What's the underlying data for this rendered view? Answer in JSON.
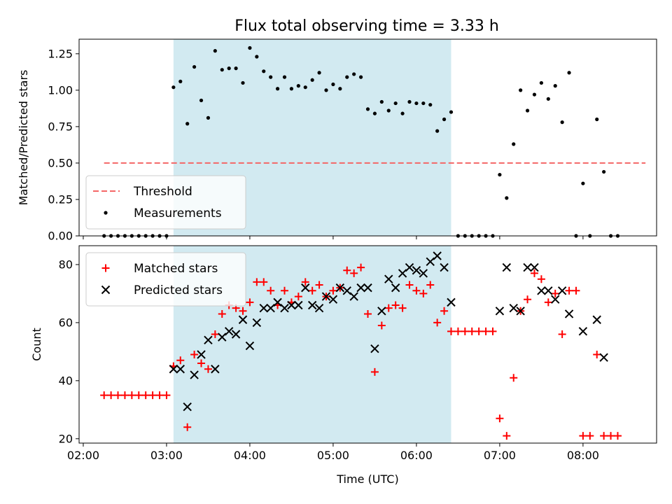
{
  "title": "Flux total observing time = 3.33 h",
  "chart_data": [
    {
      "type": "scatter",
      "ylabel": "Matched/Predicted stars",
      "ylim": [
        0,
        1.35
      ],
      "yticks": [
        0,
        0.25,
        0.5,
        0.75,
        1.0,
        1.25
      ],
      "ytick_labels": [
        "0.00",
        "0.25",
        "0.50",
        "0.75",
        "1.00",
        "1.25"
      ],
      "xlim": [
        "01:57",
        "08:53"
      ],
      "xticks": [
        "02:00",
        "03:00",
        "04:00",
        "05:00",
        "06:00",
        "07:00",
        "08:00"
      ],
      "shaded_interval": [
        "03:05",
        "06:25"
      ],
      "shade_color": "#add8e6",
      "legend_position": "lower left",
      "threshold": {
        "name": "Threshold",
        "x": [
          "02:15",
          "08:45"
        ],
        "y": 0.5,
        "color": "#f46666",
        "style": "dashed"
      },
      "series": [
        {
          "name": "Measurements",
          "color": "#000000",
          "marker": "dot",
          "x": [
            "02:15",
            "02:20",
            "02:25",
            "02:30",
            "02:35",
            "02:40",
            "02:45",
            "02:50",
            "02:55",
            "03:00",
            "03:05",
            "03:10",
            "03:15",
            "03:20",
            "03:25",
            "03:30",
            "03:35",
            "03:40",
            "03:45",
            "03:50",
            "03:55",
            "04:00",
            "04:05",
            "04:10",
            "04:15",
            "04:20",
            "04:25",
            "04:30",
            "04:35",
            "04:40",
            "04:45",
            "04:50",
            "04:55",
            "05:00",
            "05:05",
            "05:10",
            "05:15",
            "05:20",
            "05:25",
            "05:30",
            "05:35",
            "05:40",
            "05:45",
            "05:50",
            "05:55",
            "06:00",
            "06:05",
            "06:10",
            "06:15",
            "06:20",
            "06:25",
            "06:30",
            "06:35",
            "06:40",
            "06:45",
            "06:50",
            "06:55",
            "07:00",
            "07:05",
            "07:10",
            "07:15",
            "07:20",
            "07:25",
            "07:30",
            "07:35",
            "07:40",
            "07:45",
            "07:50",
            "07:55",
            "08:00",
            "08:05",
            "08:10",
            "08:15",
            "08:20",
            "08:25"
          ],
          "y": [
            0,
            0,
            0,
            0,
            0,
            0,
            0,
            0,
            0,
            0,
            1.02,
            1.06,
            0.77,
            1.16,
            0.93,
            0.81,
            1.27,
            1.14,
            1.15,
            1.15,
            1.05,
            1.29,
            1.23,
            1.13,
            1.09,
            1.01,
            1.09,
            1.01,
            1.03,
            1.02,
            1.07,
            1.12,
            1.0,
            1.04,
            1.01,
            1.09,
            1.11,
            1.09,
            0.87,
            0.84,
            0.92,
            0.86,
            0.91,
            0.84,
            0.92,
            0.91,
            0.91,
            0.9,
            0.72,
            0.8,
            0.85,
            0,
            0,
            0,
            0,
            0,
            0,
            0.42,
            0.26,
            0.63,
            1.0,
            0.86,
            0.97,
            1.05,
            0.94,
            1.03,
            0.78,
            1.12,
            0,
            0.36,
            0,
            0.8,
            0.44,
            0,
            0
          ]
        }
      ]
    },
    {
      "type": "scatter",
      "xlabel": "Time (UTC)",
      "ylabel": "Count",
      "ylim": [
        18.5,
        86.5
      ],
      "yticks": [
        20,
        40,
        60,
        80
      ],
      "xlim": [
        "01:57",
        "08:53"
      ],
      "xticks": [
        "02:00",
        "03:00",
        "04:00",
        "05:00",
        "06:00",
        "07:00",
        "08:00"
      ],
      "shaded_interval": [
        "03:05",
        "06:25"
      ],
      "shade_color": "#add8e6",
      "legend_position": "upper left",
      "series": [
        {
          "name": "Matched stars",
          "color": "#ff0000",
          "marker": "plus",
          "x": [
            "02:15",
            "02:20",
            "02:25",
            "02:30",
            "02:35",
            "02:40",
            "02:45",
            "02:50",
            "02:55",
            "03:00",
            "03:05",
            "03:10",
            "03:15",
            "03:20",
            "03:25",
            "03:30",
            "03:35",
            "03:40",
            "03:45",
            "03:50",
            "03:55",
            "04:00",
            "04:05",
            "04:10",
            "04:15",
            "04:20",
            "04:25",
            "04:30",
            "04:35",
            "04:40",
            "04:45",
            "04:50",
            "04:55",
            "05:00",
            "05:05",
            "05:10",
            "05:15",
            "05:20",
            "05:25",
            "05:30",
            "05:35",
            "05:40",
            "05:45",
            "05:50",
            "05:55",
            "06:00",
            "06:05",
            "06:10",
            "06:15",
            "06:20",
            "06:25",
            "06:30",
            "06:35",
            "06:40",
            "06:45",
            "06:50",
            "06:55",
            "07:00",
            "07:05",
            "07:10",
            "07:15",
            "07:20",
            "07:25",
            "07:30",
            "07:35",
            "07:40",
            "07:45",
            "07:50",
            "07:55",
            "08:00",
            "08:05",
            "08:10",
            "08:15",
            "08:20",
            "08:25"
          ],
          "y": [
            35,
            35,
            35,
            35,
            35,
            35,
            35,
            35,
            35,
            35,
            45,
            47,
            24,
            49,
            46,
            44,
            56,
            63,
            66,
            65,
            64,
            67,
            74,
            74,
            71,
            66,
            71,
            67,
            69,
            74,
            71,
            73,
            69,
            71,
            72,
            78,
            77,
            79,
            63,
            43,
            59,
            65,
            66,
            65,
            73,
            71,
            70,
            73,
            60,
            64,
            57,
            57,
            57,
            57,
            57,
            57,
            57,
            27,
            21,
            41,
            64,
            68,
            77,
            75,
            67,
            70,
            56,
            71,
            71,
            21,
            21,
            49,
            21,
            21,
            21
          ]
        },
        {
          "name": "Predicted stars",
          "color": "#000000",
          "marker": "x",
          "x": [
            "03:05",
            "03:10",
            "03:15",
            "03:20",
            "03:25",
            "03:30",
            "03:35",
            "03:40",
            "03:45",
            "03:50",
            "03:55",
            "04:00",
            "04:05",
            "04:10",
            "04:15",
            "04:20",
            "04:25",
            "04:30",
            "04:35",
            "04:40",
            "04:45",
            "04:50",
            "04:55",
            "05:00",
            "05:05",
            "05:10",
            "05:15",
            "05:20",
            "05:25",
            "05:30",
            "05:35",
            "05:40",
            "05:45",
            "05:50",
            "05:55",
            "06:00",
            "06:05",
            "06:10",
            "06:15",
            "06:20",
            "06:25",
            "07:00",
            "07:05",
            "07:10",
            "07:15",
            "07:20",
            "07:25",
            "07:30",
            "07:35",
            "07:40",
            "07:45",
            "07:50",
            "08:00",
            "08:10",
            "08:15"
          ],
          "y": [
            44,
            44,
            31,
            42,
            49,
            54,
            44,
            55,
            57,
            56,
            61,
            52,
            60,
            65,
            65,
            67,
            65,
            66,
            66,
            72,
            66,
            65,
            69,
            68,
            72,
            71,
            69,
            72,
            72,
            51,
            64,
            75,
            72,
            77,
            79,
            78,
            77,
            81,
            83,
            79,
            67,
            64,
            79,
            65,
            64,
            79,
            79,
            71,
            71,
            68,
            71,
            63,
            57,
            61,
            48
          ]
        }
      ]
    }
  ]
}
